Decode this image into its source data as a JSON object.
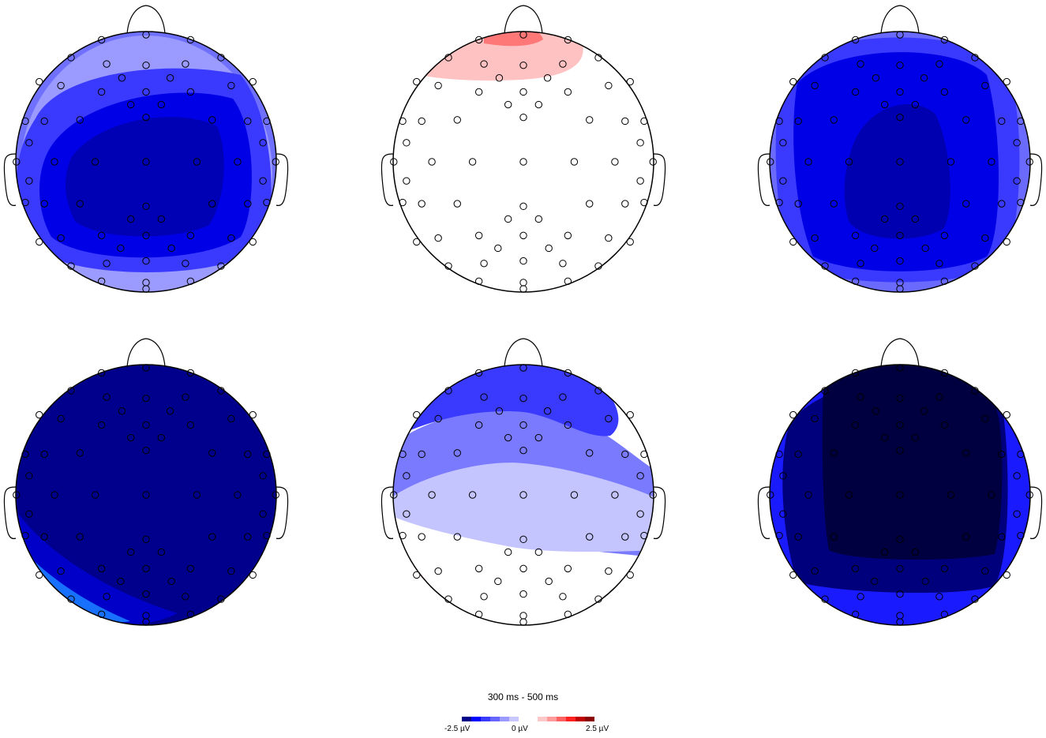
{
  "figure": {
    "time_window_label": "300 ms - 500 ms",
    "colorbar": {
      "min_label": "-2.5 µV",
      "mid_label": "0 µV",
      "max_label": "2.5 µV",
      "colors": [
        "#00008b",
        "#0000ff",
        "#3a3aff",
        "#6666ff",
        "#9a9aff",
        "#c8c8ff",
        "#ffffff",
        "#ffffff",
        "#ffc8c8",
        "#ff9a9a",
        "#ff6060",
        "#ff2020",
        "#c00000",
        "#8b0000"
      ]
    },
    "maps": [
      {
        "id": "row1-col1",
        "background": "#7070ff",
        "layers": [
          {
            "fill": "#9a9aff"
          },
          {
            "fill": "#3a3aff"
          },
          {
            "fill": "#0000e6"
          },
          {
            "fill": "#0000b4"
          }
        ]
      },
      {
        "id": "row1-col2",
        "background": "#ffffff",
        "layers": [
          {
            "fill": "#ffc2c2"
          },
          {
            "fill": "#ff7878"
          }
        ]
      },
      {
        "id": "row1-col3",
        "background": "#6a6aff",
        "layers": [
          {
            "fill": "#3a3aff"
          },
          {
            "fill": "#0000e6"
          },
          {
            "fill": "#0000b0"
          }
        ]
      },
      {
        "id": "row2-col1",
        "background": "#00008c",
        "layers": [
          {
            "fill": "#0000c8"
          },
          {
            "fill": "#1870ff"
          },
          {
            "fill": "#2ad6ff"
          }
        ]
      },
      {
        "id": "row2-col2",
        "background": "#ffffff",
        "layers": [
          {
            "fill": "#7a7aff"
          },
          {
            "fill": "#3a3aff"
          },
          {
            "fill": "#c4c4ff"
          },
          {
            "fill": "#ffc8c8"
          }
        ]
      },
      {
        "id": "row2-col3",
        "background": "#1a1aff",
        "layers": [
          {
            "fill": "#00007c"
          },
          {
            "fill": "#000040"
          }
        ]
      }
    ],
    "electrodes": {
      "count_per_map": 64
    }
  }
}
